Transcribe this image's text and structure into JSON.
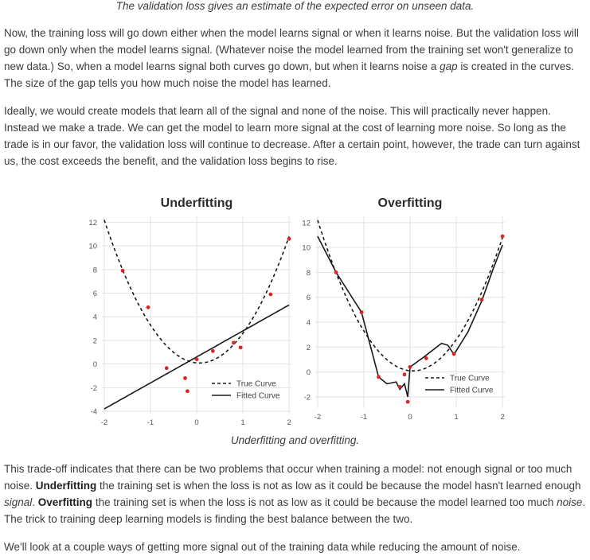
{
  "top_caption": "The validation loss gives an estimate of the expected error on unseen data.",
  "para1": {
    "t1": "Now, the training loss will go down either when the model learns signal or when it learns noise. But the validation loss will go down only when the model learns signal. (Whatever noise the model learned from the training set won't generalize to new data.) So, when a model learns signal both curves go down, but when it learns noise a ",
    "gap": "gap",
    "t2": " is created in the curves. The size of the gap tells you how much noise the model has learned."
  },
  "para2": "Ideally, we would create models that learn all of the signal and none of the noise. This will practically never happen. Instead we make a trade. We can get the model to learn more signal at the cost of learning more noise. So long as the trade is in our favor, the validation loss will continue to decrease. After a certain point, however, the trade can turn against us, the cost exceeds the benefit, and the validation loss begins to rise.",
  "figure_caption": "Underfitting and overfitting.",
  "para3": {
    "t1": "This trade-off indicates that there can be two problems that occur when training a model: not enough signal or too much noise. ",
    "underfitting": "Underfitting",
    "t2": " the training set is when the loss is not as low as it could be because the model hasn't learned enough ",
    "signal": "signal",
    "t3": ". ",
    "overfitting": "Overfitting",
    "t4": " the training set is when the loss is not as low as it could be because the model learned too much ",
    "noise": "noise",
    "t5": ". The trick to training deep learning models is finding the best balance between the two."
  },
  "para4": "We'll look at a couple ways of getting more signal out of the training data while reducing the amount of noise.",
  "colors": {
    "points": "#d62728",
    "curve": "#1a1a1a",
    "grid": "#e2e2e2",
    "text": "#3c3c3c"
  },
  "chart_data": [
    {
      "type": "line",
      "title": "Underfitting",
      "xlim": [
        -2.05,
        2.05
      ],
      "ylim": [
        -4.2,
        12.5
      ],
      "xticks": [
        -2,
        -1,
        0,
        1,
        2
      ],
      "yticks": [
        -4,
        -2,
        0,
        2,
        4,
        6,
        8,
        10,
        12
      ],
      "grid": true,
      "legend": {
        "position": "lower-right",
        "entries": [
          "True Curve",
          "Fitted Curve"
        ]
      },
      "series": [
        {
          "name": "True Curve",
          "style": "dashed",
          "kind": "quadratic",
          "coef": [
            0.1,
            -0.35,
            2.85
          ]
        },
        {
          "name": "Fitted Curve",
          "style": "solid",
          "kind": "linear",
          "coef": [
            0.6,
            2.2
          ]
        }
      ],
      "points": [
        [
          -1.6,
          7.9
        ],
        [
          -1.05,
          4.8
        ],
        [
          -0.65,
          -0.35
        ],
        [
          -0.25,
          -1.2
        ],
        [
          -0.2,
          -2.3
        ],
        [
          0.0,
          0.4
        ],
        [
          0.35,
          1.1
        ],
        [
          0.8,
          1.8
        ],
        [
          0.95,
          1.4
        ],
        [
          1.6,
          5.9
        ],
        [
          2.0,
          10.6
        ]
      ]
    },
    {
      "type": "line",
      "title": "Overfitting",
      "xlim": [
        -2.05,
        2.05
      ],
      "ylim": [
        -2.9,
        12.5
      ],
      "xticks": [
        -2,
        -1,
        0,
        1,
        2
      ],
      "yticks": [
        -2,
        0,
        2,
        4,
        6,
        8,
        10,
        12
      ],
      "grid": true,
      "legend": {
        "position": "lower-right",
        "entries": [
          "True Curve",
          "Fitted Curve"
        ]
      },
      "series": [
        {
          "name": "True Curve",
          "style": "dashed",
          "kind": "quadratic",
          "coef": [
            0.1,
            -0.35,
            2.85
          ]
        },
        {
          "name": "Fitted Curve",
          "style": "solid",
          "kind": "points",
          "x": [
            -2.0,
            -1.6,
            -1.05,
            -0.68,
            -0.5,
            -0.3,
            -0.22,
            -0.12,
            -0.05,
            0.0,
            0.3,
            0.68,
            0.82,
            0.95,
            1.25,
            1.55,
            1.8,
            2.0
          ],
          "y": [
            10.9,
            8.0,
            4.8,
            -0.4,
            -0.95,
            -0.8,
            -1.4,
            -0.95,
            -2.0,
            0.4,
            1.2,
            2.3,
            2.15,
            1.4,
            3.2,
            5.7,
            8.3,
            10.2
          ]
        }
      ],
      "points": [
        [
          -1.6,
          8.0
        ],
        [
          -1.05,
          4.8
        ],
        [
          -0.68,
          -0.4
        ],
        [
          -0.22,
          -1.2
        ],
        [
          -0.12,
          -0.2
        ],
        [
          -0.05,
          -2.4
        ],
        [
          0.0,
          0.4
        ],
        [
          0.35,
          1.1
        ],
        [
          0.95,
          1.45
        ],
        [
          1.55,
          5.8
        ],
        [
          2.0,
          10.9
        ]
      ]
    }
  ]
}
